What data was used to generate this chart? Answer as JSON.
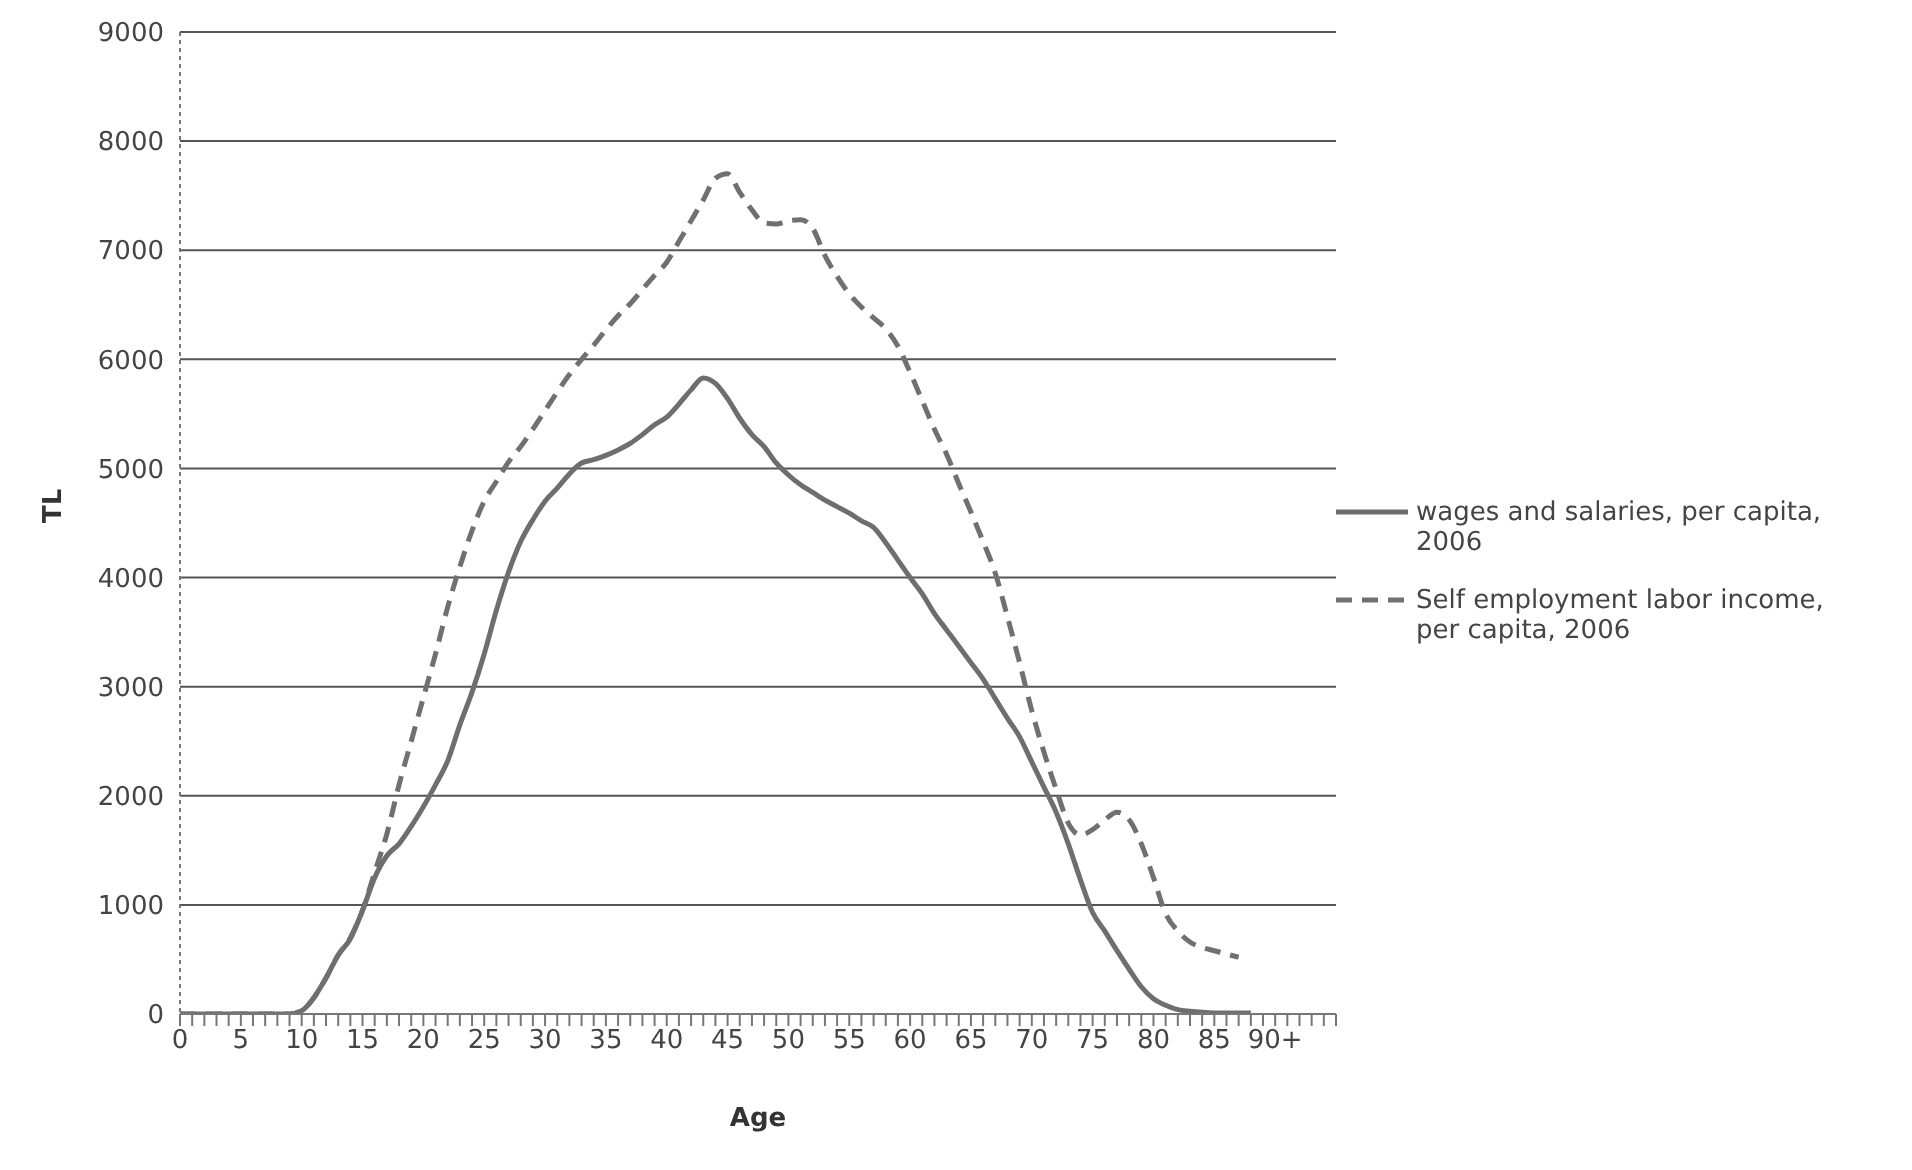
{
  "chart_data": {
    "type": "line",
    "xlabel": "Age",
    "ylabel": "TL",
    "categories": [
      "0",
      null,
      null,
      null,
      null,
      "5",
      null,
      null,
      null,
      null,
      "10",
      null,
      null,
      null,
      null,
      "15",
      null,
      null,
      null,
      null,
      "20",
      null,
      null,
      null,
      null,
      "25",
      null,
      null,
      null,
      null,
      "30",
      null,
      null,
      null,
      null,
      "35",
      null,
      null,
      null,
      null,
      "40",
      null,
      null,
      null,
      null,
      "45",
      null,
      null,
      null,
      null,
      "50",
      null,
      null,
      null,
      null,
      "55",
      null,
      null,
      null,
      null,
      "60",
      null,
      null,
      null,
      null,
      "65",
      null,
      null,
      null,
      null,
      "70",
      null,
      null,
      null,
      null,
      "75",
      null,
      null,
      null,
      null,
      "80",
      null,
      null,
      null,
      null,
      "85",
      null,
      null,
      null,
      null,
      "90+",
      null,
      null,
      null,
      null,
      null
    ],
    "series": [
      {
        "name": "wages and salaries, per capita, 2006",
        "color": "#6e6e6e",
        "line_style": "solid",
        "values": [
          0,
          0,
          0,
          0,
          0,
          0,
          0,
          0,
          0,
          0,
          30,
          150,
          330,
          540,
          690,
          950,
          1250,
          1450,
          1560,
          1720,
          1900,
          2100,
          2320,
          2650,
          2950,
          3300,
          3700,
          4050,
          4330,
          4530,
          4700,
          4820,
          4950,
          5050,
          5080,
          5120,
          5170,
          5230,
          5310,
          5400,
          5470,
          5590,
          5720,
          5830,
          5780,
          5640,
          5460,
          5310,
          5200,
          5050,
          4940,
          4850,
          4780,
          4710,
          4650,
          4590,
          4520,
          4460,
          4320,
          4160,
          4000,
          3850,
          3670,
          3520,
          3370,
          3220,
          3070,
          2890,
          2710,
          2540,
          2310,
          2080,
          1850,
          1560,
          1230,
          930,
          760,
          580,
          410,
          250,
          140,
          80,
          40,
          25,
          15,
          10,
          10,
          10,
          10,
          null,
          null,
          null,
          null,
          null,
          null,
          null
        ]
      },
      {
        "name": "Self employment labor income, per capita, 2006",
        "color": "#707070",
        "line_style": "dashed",
        "values": [
          0,
          0,
          0,
          0,
          0,
          0,
          0,
          0,
          0,
          0,
          30,
          150,
          330,
          540,
          700,
          950,
          1300,
          1650,
          2100,
          2500,
          2900,
          3300,
          3730,
          4100,
          4430,
          4700,
          4880,
          5060,
          5200,
          5360,
          5530,
          5700,
          5860,
          6000,
          6130,
          6270,
          6400,
          6510,
          6640,
          6770,
          6890,
          7080,
          7270,
          7460,
          7660,
          7700,
          7530,
          7370,
          7250,
          7240,
          7270,
          7280,
          7200,
          6950,
          6760,
          6600,
          6480,
          6380,
          6280,
          6120,
          5880,
          5620,
          5360,
          5130,
          4860,
          4600,
          4330,
          4040,
          3640,
          3220,
          2780,
          2400,
          2060,
          1750,
          1640,
          1690,
          1780,
          1850,
          1780,
          1560,
          1250,
          920,
          760,
          660,
          610,
          580,
          550,
          520,
          null,
          null,
          null,
          null,
          null,
          null,
          null,
          null
        ]
      }
    ],
    "ylim": [
      0,
      9000
    ],
    "yticks": [
      0,
      1000,
      2000,
      3000,
      4000,
      5000,
      6000,
      7000,
      8000,
      9000
    ],
    "grid": "y",
    "legend": "right"
  }
}
